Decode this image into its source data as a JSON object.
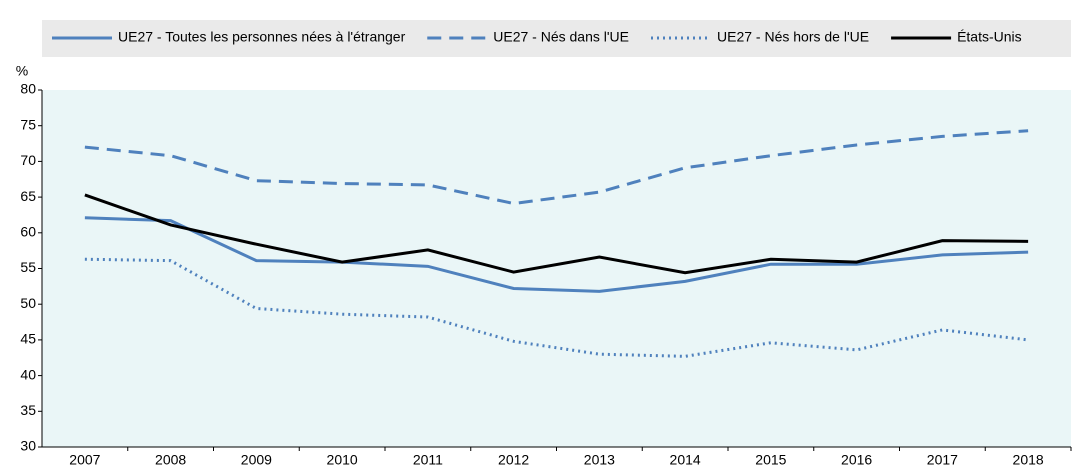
{
  "chart_data": {
    "type": "line",
    "y_unit_label": "%",
    "categories": [
      "2007",
      "2008",
      "2009",
      "2010",
      "2011",
      "2012",
      "2013",
      "2014",
      "2015",
      "2016",
      "2017",
      "2018"
    ],
    "series": [
      {
        "name": "UE27 - Toutes les personnes nées à l'étranger",
        "color": "#4f81bd",
        "style": "solid",
        "values": [
          62.1,
          61.7,
          56.1,
          55.9,
          55.3,
          52.2,
          51.8,
          53.2,
          55.6,
          55.6,
          56.9,
          57.3
        ]
      },
      {
        "name": "UE27 - Nés dans l'UE",
        "color": "#4f81bd",
        "style": "dashed",
        "values": [
          72.0,
          70.8,
          67.3,
          66.9,
          66.7,
          64.1,
          65.7,
          69.1,
          70.8,
          72.3,
          73.5,
          74.3
        ]
      },
      {
        "name": "UE27 - Nés hors de l'UE",
        "color": "#4f81bd",
        "style": "dotted",
        "values": [
          56.3,
          56.1,
          49.4,
          48.6,
          48.2,
          44.8,
          43.0,
          42.7,
          44.6,
          43.6,
          46.4,
          45.0
        ]
      },
      {
        "name": "États-Unis",
        "color": "#000000",
        "style": "solid",
        "values": [
          65.3,
          61.1,
          58.4,
          55.9,
          57.6,
          54.5,
          56.6,
          54.4,
          56.3,
          55.9,
          58.9,
          58.8
        ]
      }
    ],
    "ylim": [
      30,
      80
    ],
    "yticks": [
      30,
      35,
      40,
      45,
      50,
      55,
      60,
      65,
      70,
      75,
      80
    ],
    "grid": false
  }
}
